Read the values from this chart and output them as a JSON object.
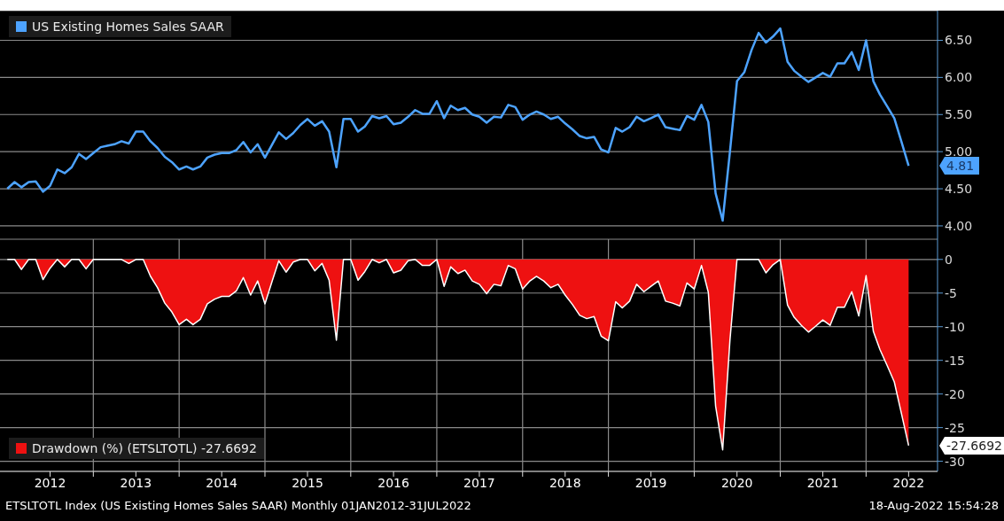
{
  "chart_data": [
    {
      "type": "line",
      "x": [
        "2012-01",
        "2012-02",
        "2012-03",
        "2012-04",
        "2012-05",
        "2012-06",
        "2012-07",
        "2012-08",
        "2012-09",
        "2012-10",
        "2012-11",
        "2012-12",
        "2013-01",
        "2013-02",
        "2013-03",
        "2013-04",
        "2013-05",
        "2013-06",
        "2013-07",
        "2013-08",
        "2013-09",
        "2013-10",
        "2013-11",
        "2013-12",
        "2014-01",
        "2014-02",
        "2014-03",
        "2014-04",
        "2014-05",
        "2014-06",
        "2014-07",
        "2014-08",
        "2014-09",
        "2014-10",
        "2014-11",
        "2014-12",
        "2015-01",
        "2015-02",
        "2015-03",
        "2015-04",
        "2015-05",
        "2015-06",
        "2015-07",
        "2015-08",
        "2015-09",
        "2015-10",
        "2015-11",
        "2015-12",
        "2016-01",
        "2016-02",
        "2016-03",
        "2016-04",
        "2016-05",
        "2016-06",
        "2016-07",
        "2016-08",
        "2016-09",
        "2016-10",
        "2016-11",
        "2016-12",
        "2017-01",
        "2017-02",
        "2017-03",
        "2017-04",
        "2017-05",
        "2017-06",
        "2017-07",
        "2017-08",
        "2017-09",
        "2017-10",
        "2017-11",
        "2017-12",
        "2018-01",
        "2018-02",
        "2018-03",
        "2018-04",
        "2018-05",
        "2018-06",
        "2018-07",
        "2018-08",
        "2018-09",
        "2018-10",
        "2018-11",
        "2018-12",
        "2019-01",
        "2019-02",
        "2019-03",
        "2019-04",
        "2019-05",
        "2019-06",
        "2019-07",
        "2019-08",
        "2019-09",
        "2019-10",
        "2019-11",
        "2019-12",
        "2020-01",
        "2020-02",
        "2020-03",
        "2020-04",
        "2020-05",
        "2020-06",
        "2020-07",
        "2020-08",
        "2020-09",
        "2020-10",
        "2020-11",
        "2020-12",
        "2021-01",
        "2021-02",
        "2021-03",
        "2021-04",
        "2021-05",
        "2021-06",
        "2021-07",
        "2021-08",
        "2021-09",
        "2021-10",
        "2021-11",
        "2021-12",
        "2022-01",
        "2022-02",
        "2022-03",
        "2022-04",
        "2022-05",
        "2022-06",
        "2022-07"
      ],
      "series": [
        {
          "name": "US Existing Homes Sales SAAR",
          "color": "#4da3ff",
          "values": [
            4.5,
            4.59,
            4.52,
            4.59,
            4.6,
            4.46,
            4.54,
            4.76,
            4.71,
            4.79,
            4.97,
            4.9,
            4.98,
            5.06,
            5.08,
            5.1,
            5.14,
            5.11,
            5.27,
            5.27,
            5.14,
            5.05,
            4.93,
            4.86,
            4.76,
            4.8,
            4.76,
            4.8,
            4.92,
            4.96,
            4.98,
            4.98,
            5.02,
            5.13,
            4.99,
            5.1,
            4.92,
            5.1,
            5.26,
            5.17,
            5.25,
            5.36,
            5.44,
            5.35,
            5.41,
            5.27,
            4.79,
            5.44,
            5.44,
            5.27,
            5.34,
            5.48,
            5.45,
            5.48,
            5.37,
            5.39,
            5.47,
            5.56,
            5.51,
            5.51,
            5.68,
            5.45,
            5.62,
            5.56,
            5.59,
            5.5,
            5.47,
            5.39,
            5.47,
            5.46,
            5.63,
            5.6,
            5.43,
            5.5,
            5.54,
            5.5,
            5.44,
            5.47,
            5.38,
            5.3,
            5.21,
            5.18,
            5.2,
            5.03,
            4.99,
            5.32,
            5.27,
            5.33,
            5.47,
            5.41,
            5.45,
            5.5,
            5.33,
            5.31,
            5.29,
            5.48,
            5.43,
            5.63,
            5.4,
            4.44,
            4.07,
            5.0,
            5.95,
            6.07,
            6.37,
            6.6,
            6.47,
            6.55,
            6.66,
            6.21,
            6.09,
            6.01,
            5.94,
            6.0,
            6.06,
            6.01,
            6.19,
            6.19,
            6.34,
            6.1,
            6.5,
            5.95,
            5.77,
            5.61,
            5.45,
            5.13,
            4.81
          ]
        }
      ],
      "xlim": [
        "2011-12",
        "2022-11"
      ],
      "ylim": [
        3.82,
        6.9
      ],
      "yticks": [
        {
          "value": 4,
          "label": "4.00"
        },
        {
          "value": 4.5,
          "label": "4.50"
        },
        {
          "value": 5,
          "label": "5.00"
        },
        {
          "value": 5.5,
          "label": "5.50"
        },
        {
          "value": 6,
          "label": "6.00"
        },
        {
          "value": 6.5,
          "label": "6.50"
        }
      ],
      "grid": "y",
      "legend": "top left",
      "tick_labels": "y",
      "annotations": [
        "4.81"
      ]
    },
    {
      "type": "area",
      "x": [
        "2012-01",
        "2012-02",
        "2012-03",
        "2012-04",
        "2012-05",
        "2012-06",
        "2012-07",
        "2012-08",
        "2012-09",
        "2012-10",
        "2012-11",
        "2012-12",
        "2013-01",
        "2013-02",
        "2013-03",
        "2013-04",
        "2013-05",
        "2013-06",
        "2013-07",
        "2013-08",
        "2013-09",
        "2013-10",
        "2013-11",
        "2013-12",
        "2014-01",
        "2014-02",
        "2014-03",
        "2014-04",
        "2014-05",
        "2014-06",
        "2014-07",
        "2014-08",
        "2014-09",
        "2014-10",
        "2014-11",
        "2014-12",
        "2015-01",
        "2015-02",
        "2015-03",
        "2015-04",
        "2015-05",
        "2015-06",
        "2015-07",
        "2015-08",
        "2015-09",
        "2015-10",
        "2015-11",
        "2015-12",
        "2016-01",
        "2016-02",
        "2016-03",
        "2016-04",
        "2016-05",
        "2016-06",
        "2016-07",
        "2016-08",
        "2016-09",
        "2016-10",
        "2016-11",
        "2016-12",
        "2017-01",
        "2017-02",
        "2017-03",
        "2017-04",
        "2017-05",
        "2017-06",
        "2017-07",
        "2017-08",
        "2017-09",
        "2017-10",
        "2017-11",
        "2017-12",
        "2018-01",
        "2018-02",
        "2018-03",
        "2018-04",
        "2018-05",
        "2018-06",
        "2018-07",
        "2018-08",
        "2018-09",
        "2018-10",
        "2018-11",
        "2018-12",
        "2019-01",
        "2019-02",
        "2019-03",
        "2019-04",
        "2019-05",
        "2019-06",
        "2019-07",
        "2019-08",
        "2019-09",
        "2019-10",
        "2019-11",
        "2019-12",
        "2020-01",
        "2020-02",
        "2020-03",
        "2020-04",
        "2020-05",
        "2020-06",
        "2020-07",
        "2020-08",
        "2020-09",
        "2020-10",
        "2020-11",
        "2020-12",
        "2021-01",
        "2021-02",
        "2021-03",
        "2021-04",
        "2021-05",
        "2021-06",
        "2021-07",
        "2021-08",
        "2021-09",
        "2021-10",
        "2021-11",
        "2021-12",
        "2022-01",
        "2022-02",
        "2022-03",
        "2022-04",
        "2022-05",
        "2022-06",
        "2022-07"
      ],
      "series": [
        {
          "name": "Drawdown (%) (ETSLTOTL) -27.6692",
          "color": "#ee1111",
          "values": [
            0,
            0,
            -1.5,
            0,
            0,
            -3.0,
            -1.3,
            0,
            -1.1,
            0,
            0,
            -1.4,
            0,
            0,
            0,
            0,
            0,
            -0.6,
            0,
            0,
            -2.5,
            -4.2,
            -6.5,
            -7.8,
            -9.7,
            -8.9,
            -9.7,
            -8.9,
            -6.6,
            -5.9,
            -5.5,
            -5.5,
            -4.7,
            -2.7,
            -5.3,
            -3.2,
            -6.6,
            -3.2,
            -0.2,
            -1.9,
            -0.4,
            0,
            0,
            -1.7,
            -0.6,
            -3.1,
            -12.0,
            0,
            0,
            -3.1,
            -1.8,
            0,
            -0.5,
            0,
            -2.0,
            -1.6,
            -0.2,
            0,
            -0.9,
            -0.9,
            0,
            -4.0,
            -1.1,
            -2.1,
            -1.6,
            -3.2,
            -3.7,
            -5.1,
            -3.7,
            -3.9,
            -0.9,
            -1.4,
            -4.4,
            -3.2,
            -2.5,
            -3.2,
            -4.2,
            -3.7,
            -5.3,
            -6.7,
            -8.3,
            -8.8,
            -8.5,
            -11.4,
            -12.1,
            -6.3,
            -7.2,
            -6.2,
            -3.7,
            -4.8,
            -4.0,
            -3.2,
            -6.2,
            -6.5,
            -6.9,
            -3.5,
            -4.4,
            -0.9,
            -4.9,
            -21.8,
            -28.3,
            -12.0,
            0,
            0,
            0,
            0,
            -2.0,
            -0.8,
            0,
            -6.8,
            -8.6,
            -9.8,
            -10.8,
            -9.9,
            -9.0,
            -9.8,
            -7.1,
            -7.1,
            -4.8,
            -8.4,
            -2.4,
            -10.7,
            -13.4,
            -15.8,
            -18.2,
            -23.0,
            -27.6692
          ]
        }
      ],
      "xlim": [
        "2011-12",
        "2022-11"
      ],
      "xticks": [
        {
          "value": "2012-07",
          "label": "2012"
        },
        {
          "value": "2013-01",
          "label": null
        },
        {
          "value": "2013-07",
          "label": "2013"
        },
        {
          "value": "2014-01",
          "label": null
        },
        {
          "value": "2014-07",
          "label": "2014"
        },
        {
          "value": "2015-01",
          "label": null
        },
        {
          "value": "2015-07",
          "label": "2015"
        },
        {
          "value": "2016-01",
          "label": null
        },
        {
          "value": "2016-07",
          "label": "2016"
        },
        {
          "value": "2017-01",
          "label": null
        },
        {
          "value": "2017-07",
          "label": "2017"
        },
        {
          "value": "2018-01",
          "label": null
        },
        {
          "value": "2018-07",
          "label": "2018"
        },
        {
          "value": "2019-01",
          "label": null
        },
        {
          "value": "2019-07",
          "label": "2019"
        },
        {
          "value": "2020-01",
          "label": null
        },
        {
          "value": "2020-07",
          "label": "2020"
        },
        {
          "value": "2021-01",
          "label": null
        },
        {
          "value": "2021-07",
          "label": "2021"
        },
        {
          "value": "2022-01",
          "label": null
        },
        {
          "value": "2022-07",
          "label": "2022"
        }
      ],
      "ylim": [
        -31.5,
        3
      ],
      "yticks": [
        -30,
        -25,
        -20,
        -15,
        -10,
        -5,
        0
      ],
      "grid": true,
      "legend": "bottom left",
      "annotations": [
        "-27.6692",
        "ETSLTOTL Index (US Existing Homes Sales SAAR) Monthly 01JAN2012-31JUL2022",
        "18-Aug-2022 15:54:28"
      ]
    }
  ]
}
